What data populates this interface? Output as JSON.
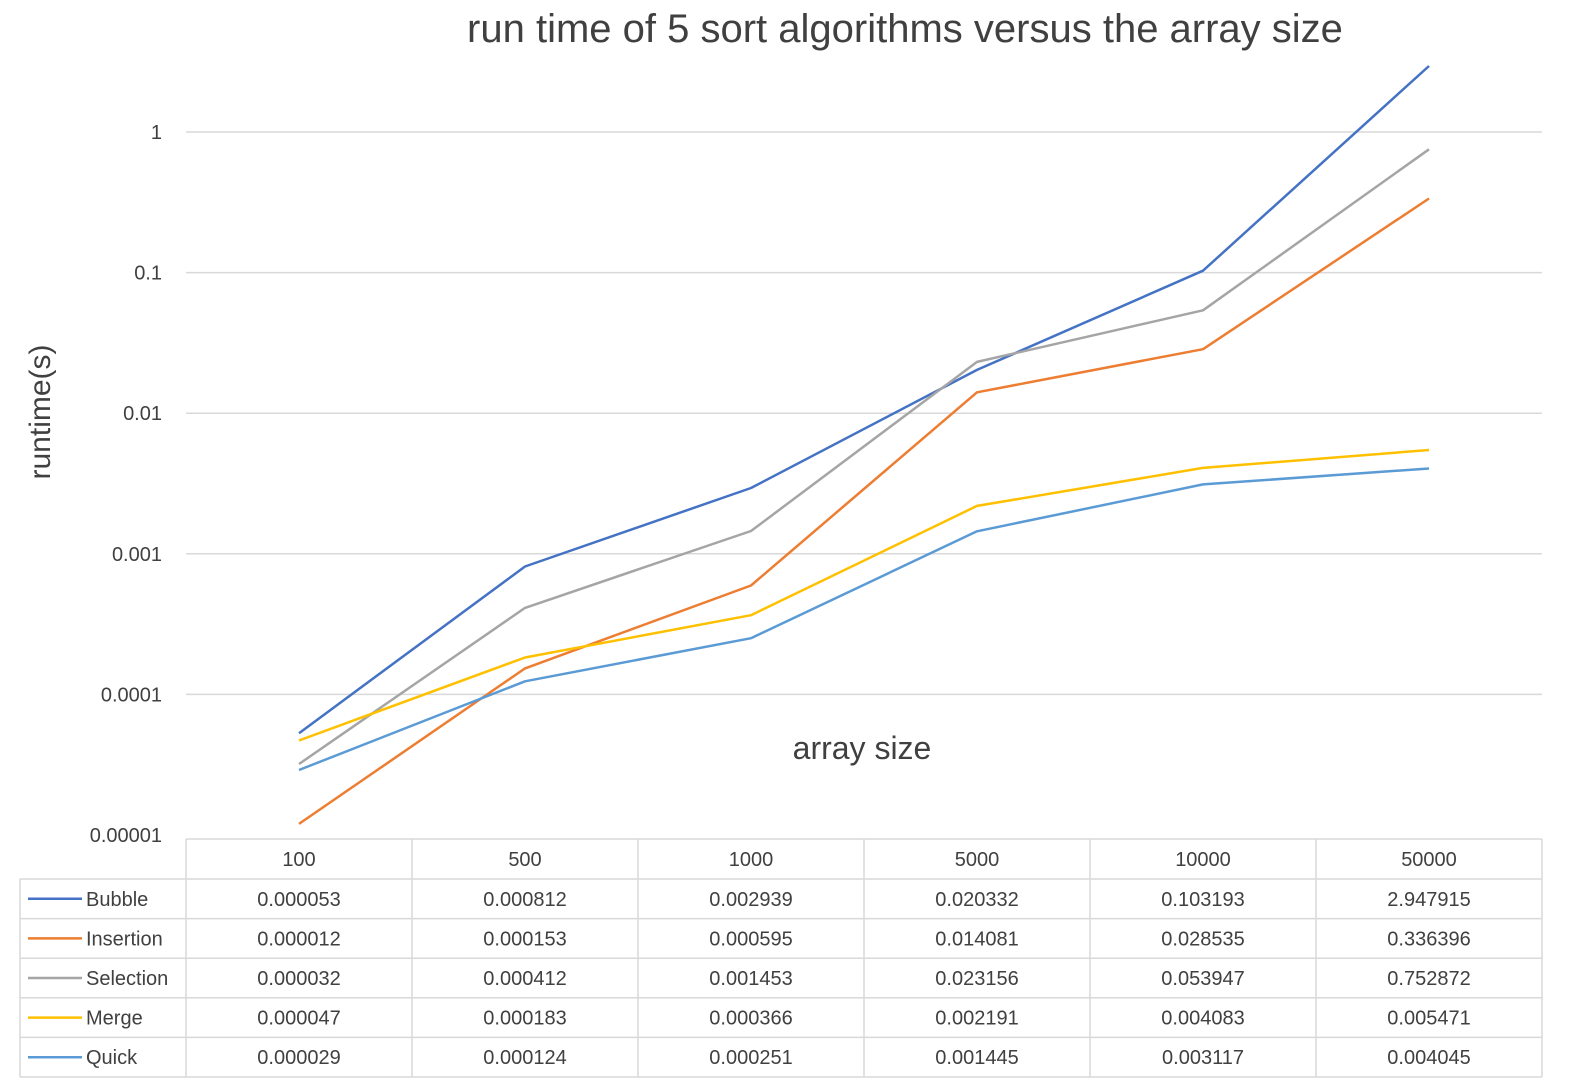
{
  "chart_data": {
    "type": "line",
    "title": "run time of 5 sort algorithms versus the array size",
    "xlabel": "array size",
    "ylabel": "runtime(s)",
    "y_scale": "log",
    "ylim": [
      1e-05,
      3
    ],
    "y_ticks": [
      "1",
      "0.1",
      "0.01",
      "0.001",
      "0.0001",
      "0.00001"
    ],
    "y_tick_values": [
      1,
      0.1,
      0.01,
      0.001,
      0.0001,
      1e-05
    ],
    "grid": true,
    "legend": "data-table",
    "categories": [
      "100",
      "500",
      "1000",
      "5000",
      "10000",
      "50000"
    ],
    "series": [
      {
        "name": "Bubble",
        "color": "#4472c4",
        "values": [
          5.3e-05,
          0.000812,
          0.002939,
          0.020332,
          0.103193,
          2.947915
        ],
        "labels": [
          "0.000053",
          "0.000812",
          "0.002939",
          "0.020332",
          "0.103193",
          "2.947915"
        ]
      },
      {
        "name": "Insertion",
        "color": "#ed7d31",
        "values": [
          1.2e-05,
          0.000153,
          0.000595,
          0.014081,
          0.028535,
          0.336396
        ],
        "labels": [
          "0.000012",
          "0.000153",
          "0.000595",
          "0.014081",
          "0.028535",
          "0.336396"
        ]
      },
      {
        "name": "Selection",
        "color": "#a5a5a5",
        "values": [
          3.2e-05,
          0.000412,
          0.001453,
          0.023156,
          0.053947,
          0.752872
        ],
        "labels": [
          "0.000032",
          "0.000412",
          "0.001453",
          "0.023156",
          "0.053947",
          "0.752872"
        ]
      },
      {
        "name": "Merge",
        "color": "#ffc000",
        "values": [
          4.7e-05,
          0.000183,
          0.000366,
          0.002191,
          0.004083,
          0.005471
        ],
        "labels": [
          "0.000047",
          "0.000183",
          "0.000366",
          "0.002191",
          "0.004083",
          "0.005471"
        ]
      },
      {
        "name": "Quick",
        "color": "#5b9bd5",
        "values": [
          2.9e-05,
          0.000124,
          0.000251,
          0.001445,
          0.003117,
          0.004045
        ],
        "labels": [
          "0.000029",
          "0.000124",
          "0.000251",
          "0.001445",
          "0.003117",
          "0.004045"
        ]
      }
    ]
  }
}
